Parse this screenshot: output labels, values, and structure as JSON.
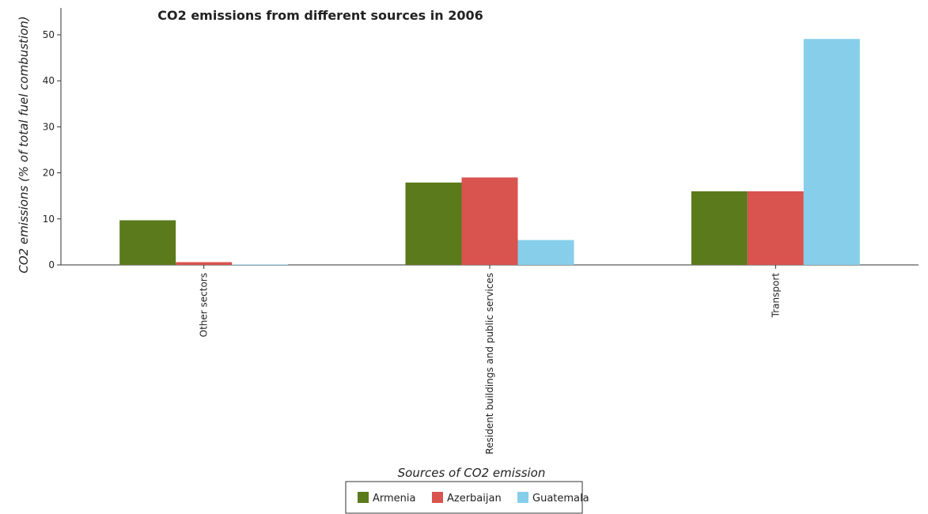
{
  "chart_data": {
    "type": "bar",
    "title": "CO2 emissions from different sources in 2006",
    "xlabel": "Sources of CO2 emission",
    "ylabel": "CO2 emissions (% of total fuel combustion)",
    "categories": [
      "Other sectors",
      "Resident buildings and public services",
      "Transport"
    ],
    "ylim": [
      0,
      50
    ],
    "yticks": [
      0,
      10,
      20,
      30,
      40,
      50
    ],
    "grid": false,
    "legend_position": "bottom-center",
    "series": [
      {
        "name": "Armenia",
        "color": "#5b7a1c",
        "values": [
          9.7,
          17.9,
          16.0
        ]
      },
      {
        "name": "Azerbaijan",
        "color": "#d9534f",
        "values": [
          0.6,
          19.0,
          16.0
        ]
      },
      {
        "name": "Guatemala",
        "color": "#87ceeb",
        "values": [
          0.1,
          5.4,
          49.1
        ]
      }
    ]
  }
}
